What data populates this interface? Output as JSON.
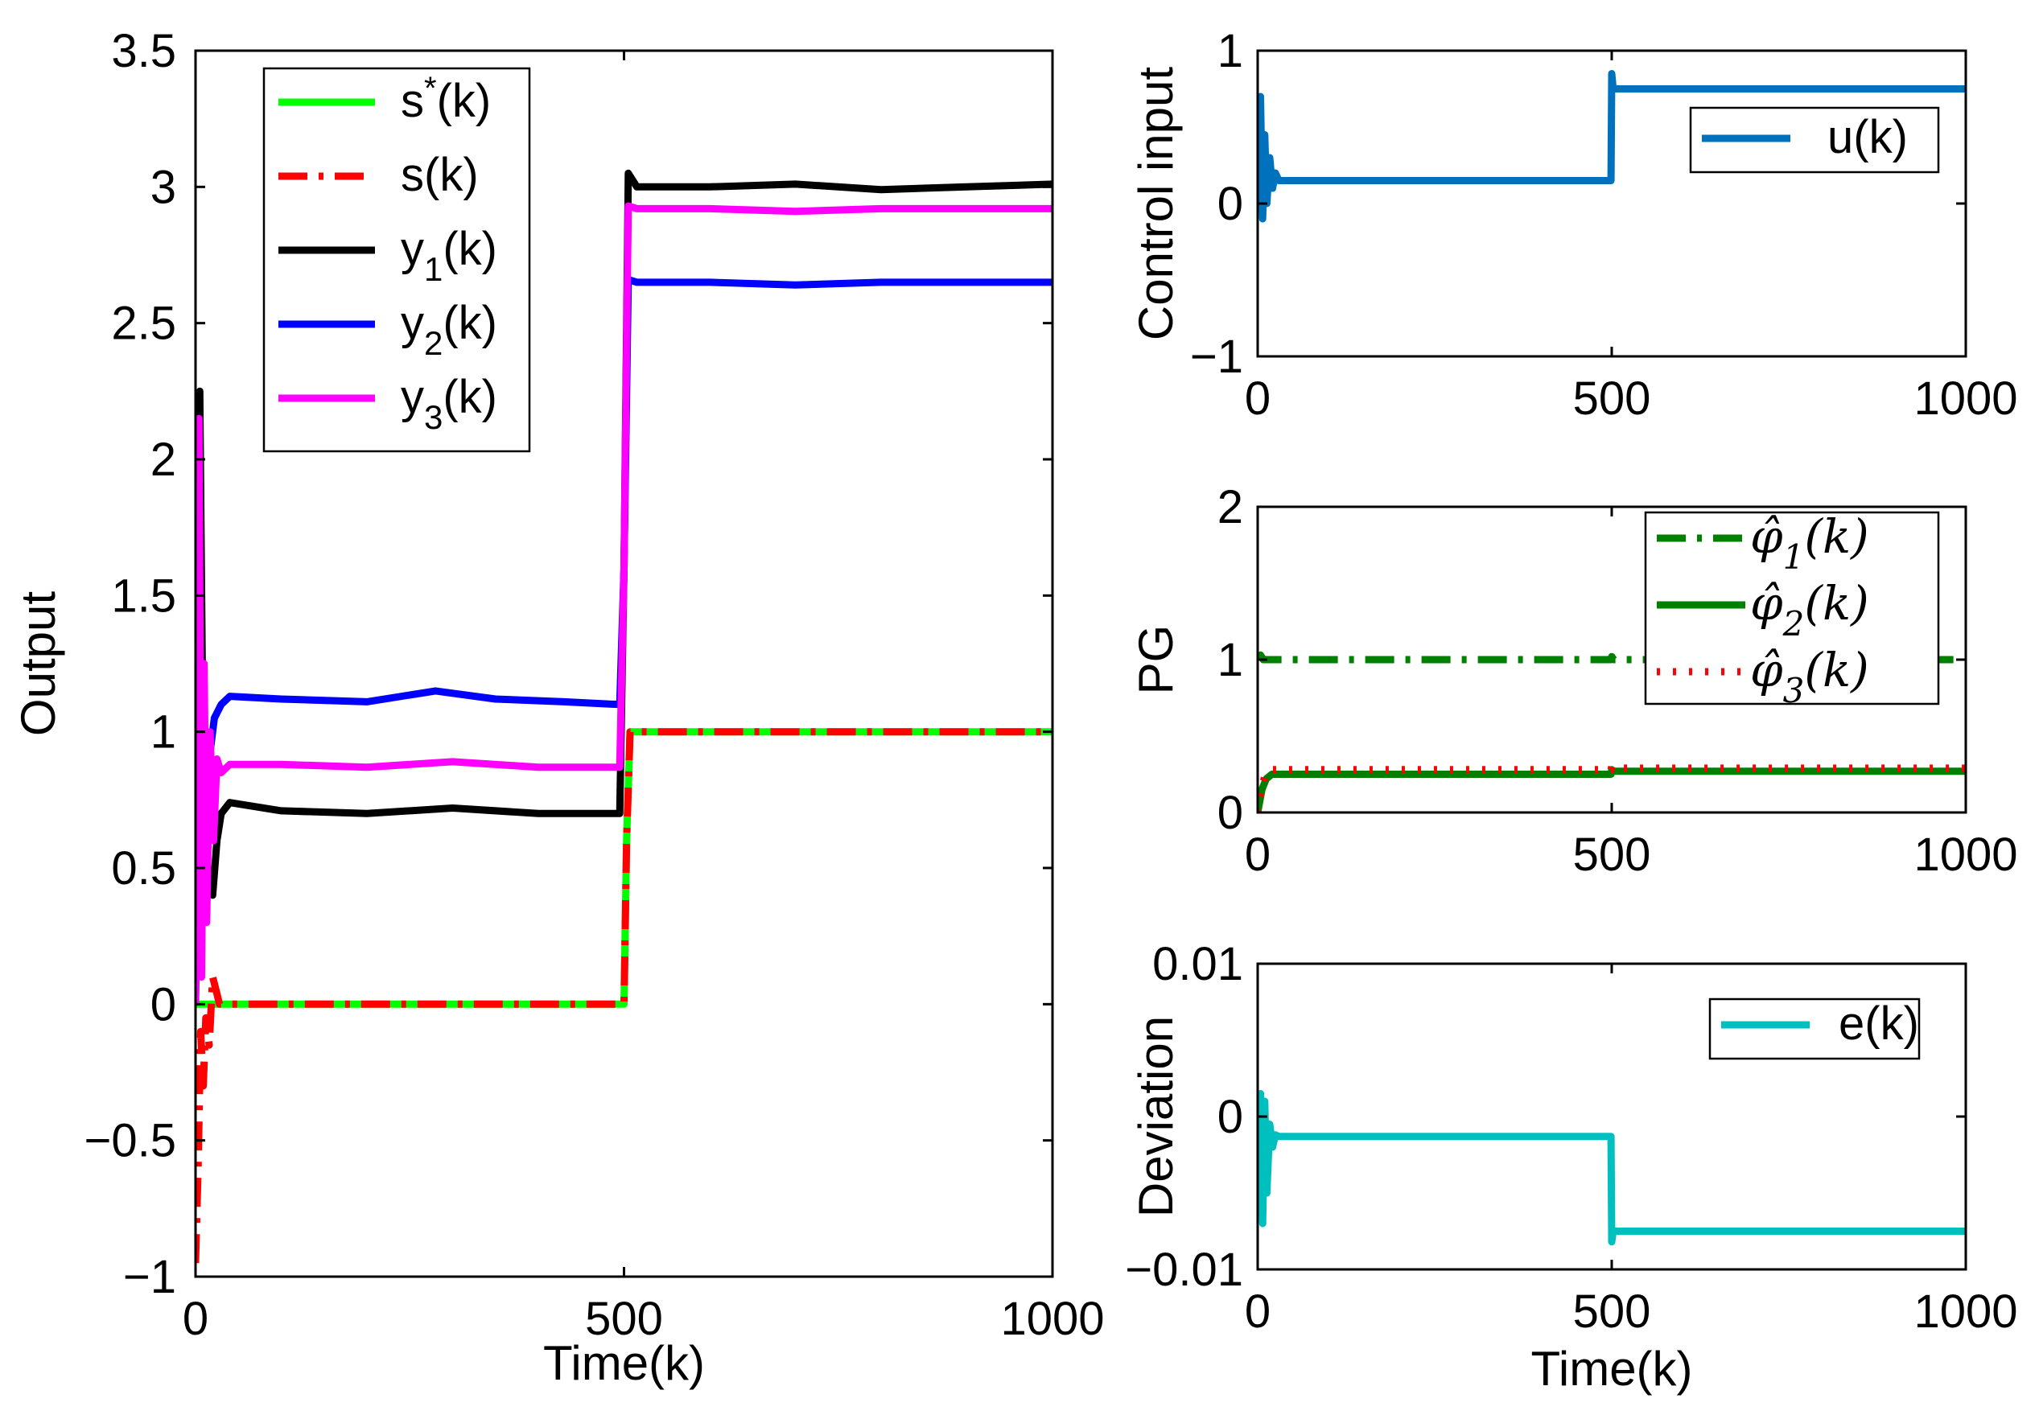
{
  "chart_data": [
    {
      "type": "line",
      "name": "outputs",
      "xlabel": "Time(k)",
      "ylabel": "Output",
      "xlim": [
        0,
        1000
      ],
      "ylim": [
        -1,
        3.5
      ],
      "xticks": [
        0,
        500,
        1000
      ],
      "xtick_labels": [
        "0",
        "500",
        "1000"
      ],
      "yticks": [
        -1,
        -0.5,
        0,
        0.5,
        1,
        1.5,
        2,
        2.5,
        3,
        3.5
      ],
      "ytick_labels": [
        "−1",
        "−0.5",
        "0",
        "0.5",
        "1",
        "1.5",
        "2",
        "2.5",
        "3",
        "3.5"
      ],
      "legend_position": "top-left",
      "series": [
        {
          "name": "s*(k)",
          "label_main": "s",
          "label_sup": "*",
          "label_sub": "",
          "label_tail": "(k)",
          "color": "#00ff00",
          "style": "solid",
          "points": [
            [
              0,
              0
            ],
            [
              30,
              0
            ],
            [
              499,
              0
            ],
            [
              500,
              0.0
            ],
            [
              503,
              0.6
            ],
            [
              507,
              1.0
            ],
            [
              1000,
              1.0
            ]
          ]
        },
        {
          "name": "s(k)",
          "label_main": "s(k)",
          "label_sup": "",
          "label_sub": "",
          "label_tail": "",
          "color": "#ff0000",
          "style": "dashdot",
          "points": [
            [
              0,
              -0.95
            ],
            [
              3,
              -0.6
            ],
            [
              6,
              -0.1
            ],
            [
              9,
              -0.3
            ],
            [
              12,
              -0.05
            ],
            [
              16,
              -0.15
            ],
            [
              20,
              0.1
            ],
            [
              24,
              0.05
            ],
            [
              28,
              0.0
            ],
            [
              30,
              0
            ],
            [
              499,
              0
            ],
            [
              500,
              0.0
            ],
            [
              503,
              0.6
            ],
            [
              507,
              1.0
            ],
            [
              1000,
              1.0
            ]
          ]
        },
        {
          "name": "y1(k)",
          "label_main": "y",
          "label_sup": "",
          "label_sub": "1",
          "label_tail": "(k)",
          "color": "#000000",
          "style": "solid",
          "points": [
            [
              0,
              0.0
            ],
            [
              5,
              2.25
            ],
            [
              8,
              1.2
            ],
            [
              11,
              0.3
            ],
            [
              15,
              0.5
            ],
            [
              20,
              0.4
            ],
            [
              25,
              0.6
            ],
            [
              30,
              0.7
            ],
            [
              40,
              0.74
            ],
            [
              100,
              0.71
            ],
            [
              200,
              0.7
            ],
            [
              300,
              0.72
            ],
            [
              400,
              0.7
            ],
            [
              495,
              0.7
            ],
            [
              500,
              1.6
            ],
            [
              505,
              3.05
            ],
            [
              515,
              3.0
            ],
            [
              600,
              3.0
            ],
            [
              700,
              3.01
            ],
            [
              800,
              2.99
            ],
            [
              900,
              3.0
            ],
            [
              1000,
              3.01
            ]
          ]
        },
        {
          "name": "y2(k)",
          "label_main": "y",
          "label_sup": "",
          "label_sub": "2",
          "label_tail": "(k)",
          "color": "#0000ff",
          "style": "solid",
          "points": [
            [
              0,
              0.0
            ],
            [
              4,
              1.5
            ],
            [
              8,
              0.6
            ],
            [
              12,
              1.0
            ],
            [
              16,
              0.9
            ],
            [
              22,
              1.05
            ],
            [
              30,
              1.1
            ],
            [
              40,
              1.13
            ],
            [
              100,
              1.12
            ],
            [
              200,
              1.11
            ],
            [
              280,
              1.15
            ],
            [
              350,
              1.12
            ],
            [
              430,
              1.11
            ],
            [
              495,
              1.1
            ],
            [
              500,
              1.6
            ],
            [
              505,
              2.66
            ],
            [
              515,
              2.65
            ],
            [
              600,
              2.65
            ],
            [
              700,
              2.64
            ],
            [
              800,
              2.65
            ],
            [
              900,
              2.65
            ],
            [
              1000,
              2.65
            ]
          ]
        },
        {
          "name": "y3(k)",
          "label_main": "y",
          "label_sup": "",
          "label_sub": "3",
          "label_tail": "(k)",
          "color": "#ff00ff",
          "style": "solid",
          "points": [
            [
              0,
              0.0
            ],
            [
              4,
              2.15
            ],
            [
              7,
              0.1
            ],
            [
              10,
              1.25
            ],
            [
              13,
              0.3
            ],
            [
              17,
              1.0
            ],
            [
              21,
              0.6
            ],
            [
              25,
              0.9
            ],
            [
              30,
              0.85
            ],
            [
              40,
              0.88
            ],
            [
              100,
              0.88
            ],
            [
              200,
              0.87
            ],
            [
              300,
              0.89
            ],
            [
              400,
              0.87
            ],
            [
              495,
              0.87
            ],
            [
              500,
              1.6
            ],
            [
              505,
              2.93
            ],
            [
              515,
              2.92
            ],
            [
              600,
              2.92
            ],
            [
              700,
              2.91
            ],
            [
              800,
              2.92
            ],
            [
              900,
              2.92
            ],
            [
              1000,
              2.92
            ]
          ]
        }
      ]
    },
    {
      "type": "line",
      "name": "control",
      "xlabel": "",
      "ylabel": "Control input",
      "xlim": [
        0,
        1000
      ],
      "ylim": [
        -1,
        1
      ],
      "xticks": [
        0,
        500,
        1000
      ],
      "xtick_labels": [
        "0",
        "500",
        "1000"
      ],
      "yticks": [
        -1,
        0,
        1
      ],
      "ytick_labels": [
        "−1",
        "0",
        "1"
      ],
      "legend_position": "top-right",
      "series": [
        {
          "name": "u(k)",
          "label_main": "u(k)",
          "label_sup": "",
          "label_sub": "",
          "label_tail": "",
          "color": "#0072bd",
          "style": "solid",
          "points": [
            [
              0,
              0.0
            ],
            [
              4,
              0.7
            ],
            [
              7,
              -0.1
            ],
            [
              10,
              0.45
            ],
            [
              13,
              0.0
            ],
            [
              17,
              0.3
            ],
            [
              21,
              0.1
            ],
            [
              25,
              0.2
            ],
            [
              30,
              0.15
            ],
            [
              499,
              0.15
            ],
            [
              500,
              0.85
            ],
            [
              502,
              0.75
            ],
            [
              1000,
              0.75
            ]
          ]
        }
      ]
    },
    {
      "type": "line",
      "name": "pg",
      "xlabel": "",
      "ylabel": "PG",
      "xlim": [
        0,
        1000
      ],
      "ylim": [
        0,
        2
      ],
      "xticks": [
        0,
        500,
        1000
      ],
      "xtick_labels": [
        "0",
        "500",
        "1000"
      ],
      "yticks": [
        0,
        1,
        2
      ],
      "ytick_labels": [
        "0",
        "1",
        "2"
      ],
      "legend_position": "top-right",
      "series": [
        {
          "name": "phi1(k)",
          "label_main": "φ̂",
          "label_sup": "",
          "label_sub": "1",
          "label_tail": "(k)",
          "color": "#008000",
          "style": "dashdot",
          "points": [
            [
              0,
              1.0
            ],
            [
              4,
              1.03
            ],
            [
              8,
              1.0
            ],
            [
              499,
              1.0
            ],
            [
              500,
              1.02
            ],
            [
              503,
              1.0
            ],
            [
              1000,
              1.0
            ]
          ]
        },
        {
          "name": "phi2(k)",
          "label_main": "φ̂",
          "label_sup": "",
          "label_sub": "2",
          "label_tail": "(k)",
          "color": "#008000",
          "style": "solid",
          "points": [
            [
              0,
              0.0
            ],
            [
              6,
              0.15
            ],
            [
              12,
              0.22
            ],
            [
              20,
              0.25
            ],
            [
              499,
              0.25
            ],
            [
              500,
              0.28
            ],
            [
              502,
              0.27
            ],
            [
              1000,
              0.27
            ]
          ]
        },
        {
          "name": "phi3(k)",
          "label_main": "φ̂",
          "label_sup": "",
          "label_sub": "3",
          "label_tail": "(k)",
          "color": "#ff0000",
          "style": "dotted",
          "points": [
            [
              0,
              0.0
            ],
            [
              6,
              0.18
            ],
            [
              12,
              0.26
            ],
            [
              20,
              0.28
            ],
            [
              499,
              0.28
            ],
            [
              500,
              0.3
            ],
            [
              502,
              0.29
            ],
            [
              1000,
              0.29
            ]
          ]
        }
      ]
    },
    {
      "type": "line",
      "name": "deviation",
      "xlabel": "Time(k)",
      "ylabel": "Deviation",
      "xlim": [
        0,
        1000
      ],
      "ylim": [
        -0.01,
        0.01
      ],
      "xticks": [
        0,
        500,
        1000
      ],
      "xtick_labels": [
        "0",
        "500",
        "1000"
      ],
      "yticks": [
        -0.01,
        0,
        0.01
      ],
      "ytick_labels": [
        "−0.01",
        "0",
        "0.01"
      ],
      "legend_position": "top-right",
      "series": [
        {
          "name": "e(k)",
          "label_main": "e(k)",
          "label_sup": "",
          "label_sub": "",
          "label_tail": "",
          "color": "#00bfbf",
          "style": "solid",
          "points": [
            [
              0,
              -0.001
            ],
            [
              4,
              0.0015
            ],
            [
              7,
              -0.007
            ],
            [
              10,
              0.001
            ],
            [
              13,
              -0.005
            ],
            [
              17,
              -0.0005
            ],
            [
              21,
              -0.002
            ],
            [
              25,
              -0.0012
            ],
            [
              30,
              -0.0013
            ],
            [
              499,
              -0.0013
            ],
            [
              500,
              -0.0082
            ],
            [
              502,
              -0.0075
            ],
            [
              1000,
              -0.0075
            ]
          ]
        }
      ]
    }
  ]
}
